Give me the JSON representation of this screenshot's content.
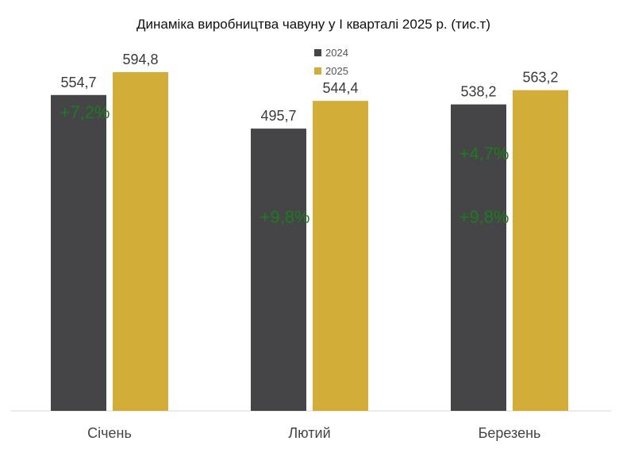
{
  "chart_data": {
    "type": "bar",
    "title": "Динаміка виробництва чавуну у І кварталі 2025 р. (тис.т)",
    "categories": [
      "Січень",
      "Лютий",
      "Березень"
    ],
    "series": [
      {
        "name": "2024",
        "values": [
          554.7,
          495.7,
          538.2
        ],
        "labels": [
          "554,7",
          "495,7",
          "538,2"
        ],
        "color": "#454547"
      },
      {
        "name": "2025",
        "values": [
          594.8,
          544.4,
          563.2
        ],
        "labels": [
          "594,8",
          "544,4",
          "563,2"
        ],
        "color": "#d2ae38"
      }
    ],
    "annotations": [
      "+7,2%",
      "+9,8%",
      "+4,7%",
      "+9,8%"
    ],
    "annotation_color": "#1e7a1e",
    "ylim": [
      0,
      650
    ],
    "grid": false,
    "legend_position": "top-center"
  }
}
